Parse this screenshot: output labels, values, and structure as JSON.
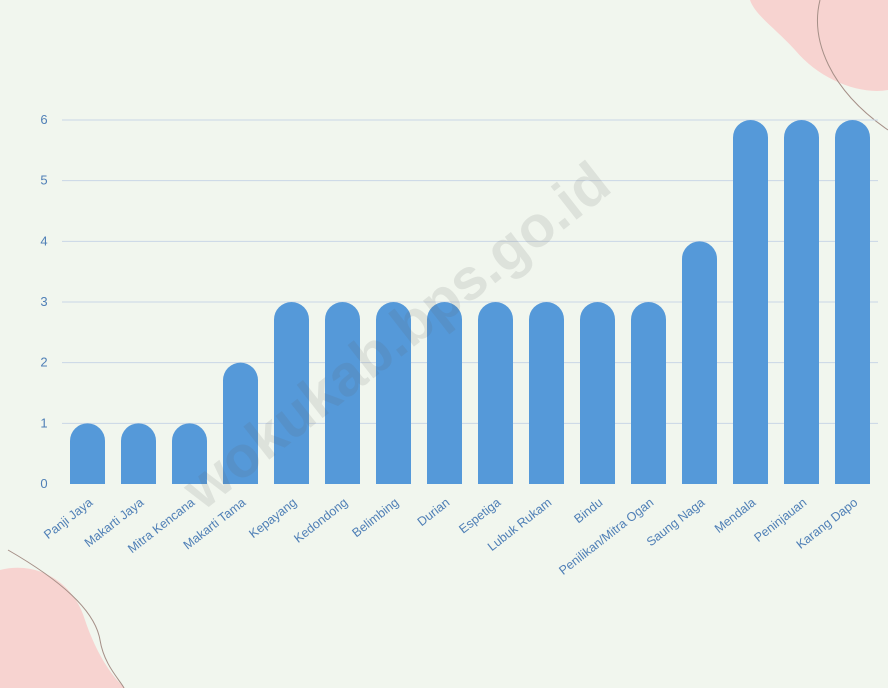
{
  "colors": {
    "background": "#f1f6ee",
    "bar": "#5599d9",
    "axis_text": "#4f7fb6",
    "grid": "#c9d6e6",
    "decoration": "#f7d3d0"
  },
  "watermark": "wokukab.bps.go.id",
  "chart_data": {
    "type": "bar",
    "title": "",
    "xlabel": "",
    "ylabel": "",
    "ylim": [
      0,
      6
    ],
    "yticks": [
      0,
      1,
      2,
      3,
      4,
      5,
      6
    ],
    "grid": true,
    "categories": [
      "Panji Jaya",
      "Makarti Jaya",
      "Mitra Kencana",
      "Makarti Tama",
      "Kepayang",
      "Kedondong",
      "Belimbing",
      "Durian",
      "Espetiga",
      "Lubuk Rukam",
      "Bindu",
      "Penilikan/Mitra Ogan",
      "Saung Naga",
      "Mendala",
      "Peninjauan",
      "Karang Dapo"
    ],
    "values": [
      1,
      1,
      1,
      2,
      3,
      3,
      3,
      3,
      3,
      3,
      3,
      3,
      4,
      6,
      6,
      6
    ]
  }
}
